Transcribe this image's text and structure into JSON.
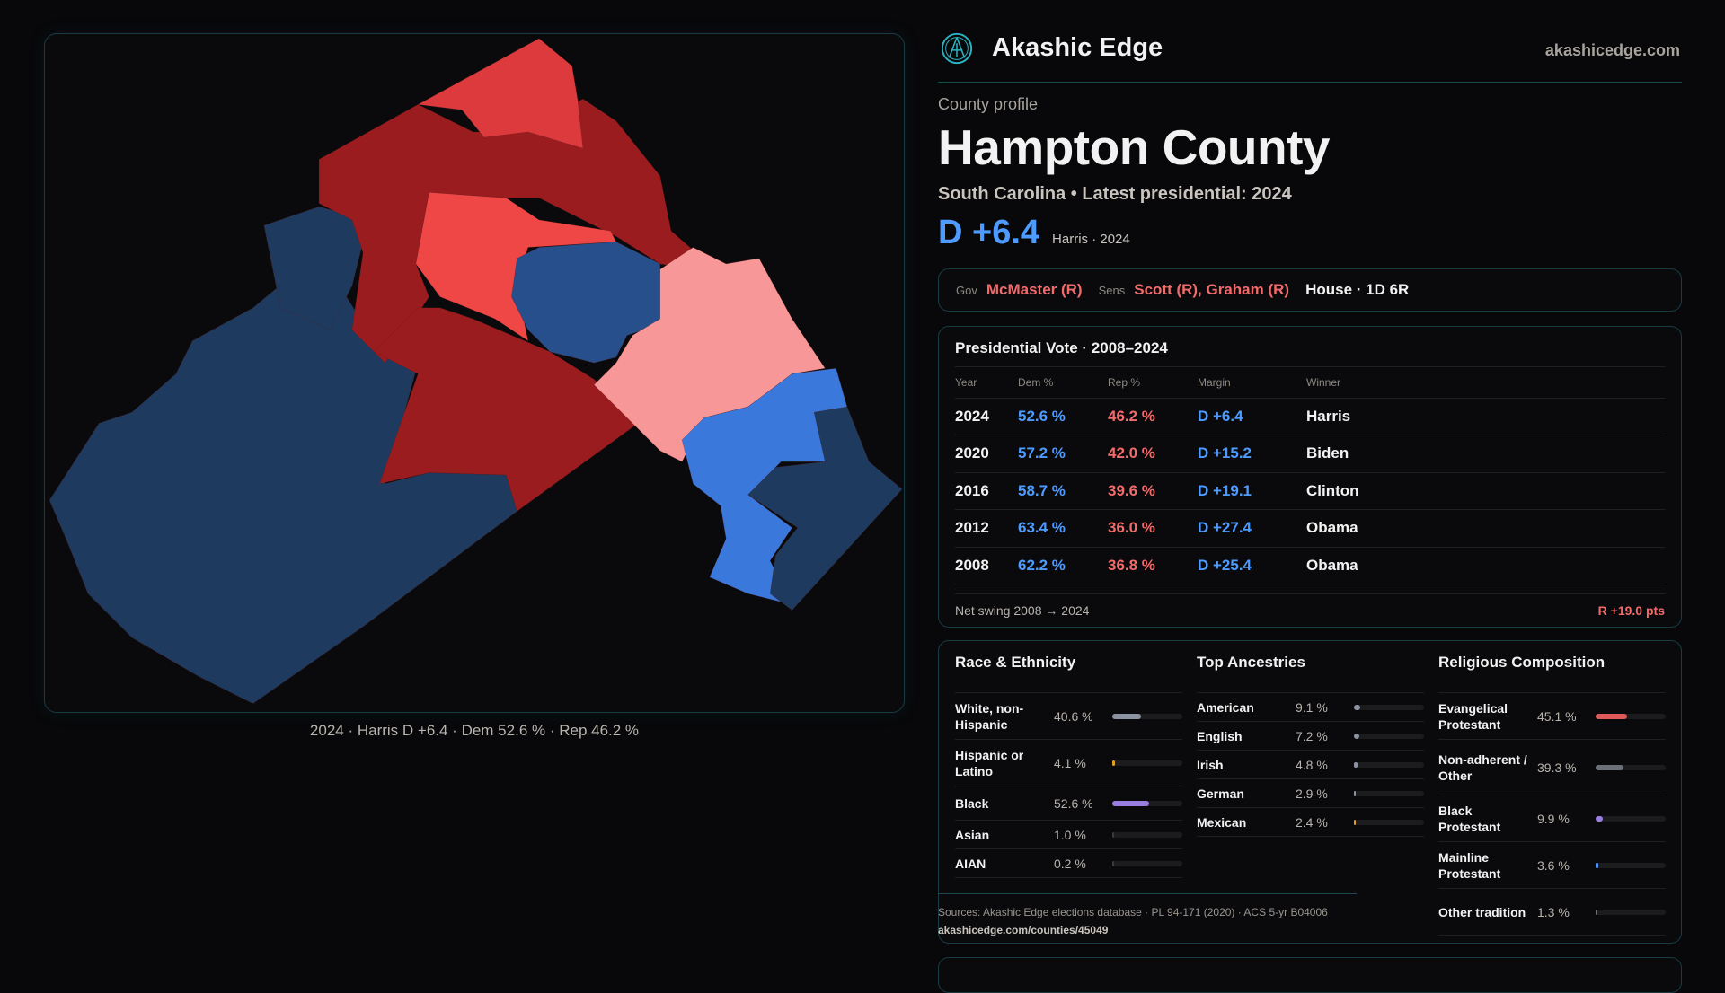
{
  "brand": {
    "name": "Akashic Edge",
    "site": "akashicedge.com"
  },
  "profile": {
    "kicker": "County profile",
    "title": "Hampton County",
    "subtitle": "South Carolina • Latest presidential: 2024",
    "margin": "D +6.4",
    "margin_note": "Harris · 2024"
  },
  "officials": {
    "gov_label": "Gov",
    "gov": "McMaster (R)",
    "sens_label": "Sens",
    "sens": "Scott (R), Graham (R)",
    "house": "House · 1D 6R"
  },
  "map": {
    "caption": "2024 · Harris D +6.4 · Dem 52.6 % · Rep 46.2 %"
  },
  "presidential": {
    "title": "Presidential Vote · 2008–2024",
    "headers": [
      "Year",
      "Dem %",
      "Rep %",
      "Margin",
      "Winner"
    ],
    "rows": [
      [
        "2024",
        "52.6 %",
        "46.2 %",
        "D +6.4",
        "Harris"
      ],
      [
        "2020",
        "57.2 %",
        "42.0 %",
        "D +15.2",
        "Biden"
      ],
      [
        "2016",
        "58.7 %",
        "39.6 %",
        "D +19.1",
        "Clinton"
      ],
      [
        "2012",
        "63.4 %",
        "36.0 %",
        "D +27.4",
        "Obama"
      ],
      [
        "2008",
        "62.2 %",
        "36.8 %",
        "D +25.4",
        "Obama"
      ]
    ],
    "swing_label": "Net swing 2008 → 2024",
    "swing_value": "R +19.0 pts"
  },
  "race": {
    "title": "Race & Ethnicity",
    "items": [
      {
        "name": "White, non-Hispanic",
        "value": "40.6 %",
        "pct": 40.6,
        "color": "#8b93a3"
      },
      {
        "name": "Hispanic or Latino",
        "value": "4.1 %",
        "pct": 4.1,
        "color": "#e0a020"
      },
      {
        "name": "Black",
        "value": "52.6 %",
        "pct": 52.6,
        "color": "#9a7de0"
      },
      {
        "name": "Asian",
        "value": "1.0 %",
        "pct": 1.0,
        "color": "#3a3a40"
      },
      {
        "name": "AIAN",
        "value": "0.2 %",
        "pct": 0.2,
        "color": "#3a3a40"
      }
    ]
  },
  "ancestry": {
    "title": "Top Ancestries",
    "items": [
      {
        "name": "American",
        "value": "9.1 %",
        "pct": 9.1,
        "color": "#8b93a3"
      },
      {
        "name": "English",
        "value": "7.2 %",
        "pct": 7.2,
        "color": "#8b93a3"
      },
      {
        "name": "Irish",
        "value": "4.8 %",
        "pct": 4.8,
        "color": "#8b93a3"
      },
      {
        "name": "German",
        "value": "2.9 %",
        "pct": 2.9,
        "color": "#8b93a3"
      },
      {
        "name": "Mexican",
        "value": "2.4 %",
        "pct": 2.4,
        "color": "#e0a020"
      }
    ]
  },
  "religion": {
    "title": "Religious Composition",
    "items": [
      {
        "name": "Evangelical Protestant",
        "value": "45.1 %",
        "pct": 45.1,
        "color": "#e05a5a"
      },
      {
        "name": "Non-adherent / Other",
        "value": "39.3 %",
        "pct": 39.3,
        "color": "#6b6f78"
      },
      {
        "name": "Black Protestant",
        "value": "9.9 %",
        "pct": 9.9,
        "color": "#9a7de0"
      },
      {
        "name": "Mainline Protestant",
        "value": "3.6 %",
        "pct": 3.6,
        "color": "#4d9bff"
      },
      {
        "name": "Other tradition",
        "value": "1.3 %",
        "pct": 1.3,
        "color": "#6b6f78"
      }
    ]
  },
  "sources": {
    "text": "Sources: Akashic Edge elections database · PL 94-171 (2020) · ACS 5-yr B04006",
    "link": "akashicedge.com/counties/45049"
  }
}
